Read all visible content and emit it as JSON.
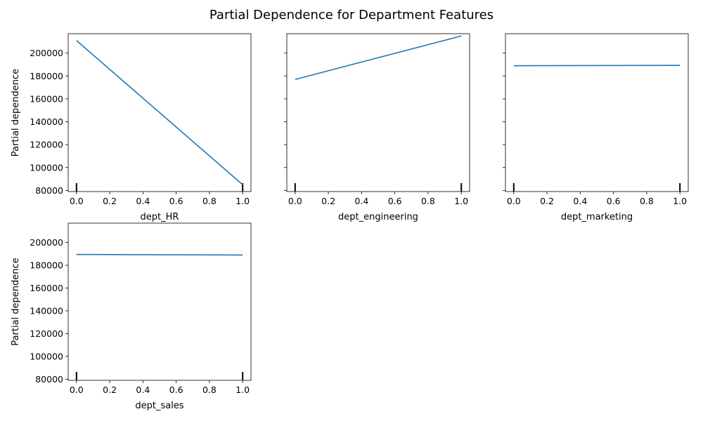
{
  "figure": {
    "title": "Partial Dependence for Department Features"
  },
  "chart_data": [
    {
      "type": "line",
      "xlabel": "dept_HR",
      "ylabel": "Partial dependence",
      "x": [
        0.0,
        1.0
      ],
      "y": [
        211000,
        85000
      ],
      "xlim": [
        -0.05,
        1.05
      ],
      "ylim": [
        79000,
        217000
      ],
      "xticks": [
        0.0,
        0.2,
        0.4,
        0.6,
        0.8,
        1.0
      ],
      "yticks": [
        80000,
        100000,
        120000,
        140000,
        160000,
        180000,
        200000
      ],
      "show_ytick_labels": true,
      "deciles": [
        0.0,
        1.0
      ],
      "color": "#1f77b4",
      "grid": false
    },
    {
      "type": "line",
      "xlabel": "dept_engineering",
      "ylabel": "",
      "x": [
        0.0,
        1.0
      ],
      "y": [
        177000,
        215000
      ],
      "xlim": [
        -0.05,
        1.05
      ],
      "ylim": [
        79000,
        217000
      ],
      "xticks": [
        0.0,
        0.2,
        0.4,
        0.6,
        0.8,
        1.0
      ],
      "yticks": [
        80000,
        100000,
        120000,
        140000,
        160000,
        180000,
        200000
      ],
      "show_ytick_labels": false,
      "deciles": [
        0.0,
        1.0
      ],
      "color": "#1f77b4",
      "grid": false
    },
    {
      "type": "line",
      "xlabel": "dept_marketing",
      "ylabel": "",
      "x": [
        0.0,
        1.0
      ],
      "y": [
        189000,
        189300
      ],
      "xlim": [
        -0.05,
        1.05
      ],
      "ylim": [
        79000,
        217000
      ],
      "xticks": [
        0.0,
        0.2,
        0.4,
        0.6,
        0.8,
        1.0
      ],
      "yticks": [
        80000,
        100000,
        120000,
        140000,
        160000,
        180000,
        200000
      ],
      "show_ytick_labels": false,
      "deciles": [
        0.0,
        1.0
      ],
      "color": "#1f77b4",
      "grid": false
    },
    {
      "type": "line",
      "xlabel": "dept_sales",
      "ylabel": "Partial dependence",
      "x": [
        0.0,
        1.0
      ],
      "y": [
        189500,
        189000
      ],
      "xlim": [
        -0.05,
        1.05
      ],
      "ylim": [
        79000,
        217000
      ],
      "xticks": [
        0.0,
        0.2,
        0.4,
        0.6,
        0.8,
        1.0
      ],
      "yticks": [
        80000,
        100000,
        120000,
        140000,
        160000,
        180000,
        200000
      ],
      "show_ytick_labels": true,
      "deciles": [
        0.0,
        1.0
      ],
      "color": "#1f77b4",
      "grid": false
    }
  ]
}
